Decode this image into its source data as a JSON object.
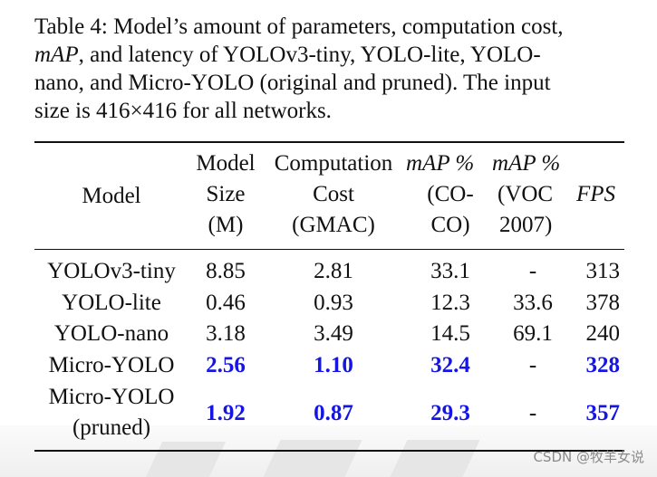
{
  "caption": {
    "line1": "Table 4: Model’s amount of parameters, computation cost,",
    "line2_map": "mAP",
    "line2_rest": ", and latency of YOLOv3-tiny, YOLO-lite, YOLO-",
    "line3": "nano, and Micro-YOLO (original and pruned).  The input",
    "line4": "size is 416×416 for all networks."
  },
  "headers": {
    "model": "Model",
    "size": [
      "Model",
      "Size",
      "(M)"
    ],
    "cost": [
      "Computation",
      "Cost",
      "(GMAC)"
    ],
    "map_coco": [
      "mAP %",
      "(CO-",
      "CO)"
    ],
    "map_voc": [
      "mAP %",
      "(VOC",
      "2007)"
    ],
    "fps": "FPS"
  },
  "rows": [
    {
      "model": "YOLOv3-tiny",
      "size": "8.85",
      "cost": "2.81",
      "coco": "33.1",
      "voc": "-",
      "fps": "313"
    },
    {
      "model": "YOLO-lite",
      "size": "0.46",
      "cost": "0.93",
      "coco": "12.3",
      "voc": "33.6",
      "fps": "378"
    },
    {
      "model": "YOLO-nano",
      "size": "3.18",
      "cost": "3.49",
      "coco": "14.5",
      "voc": "69.1",
      "fps": "240"
    },
    {
      "model": "Micro-YOLO",
      "size": "2.56",
      "cost": "1.10",
      "coco": "32.4",
      "voc": "-",
      "fps": "328"
    },
    {
      "model": [
        "Micro-YOLO",
        "(pruned)"
      ],
      "size": "1.92",
      "cost": "0.87",
      "coco": "29.3",
      "voc": "-",
      "fps": "357"
    }
  ],
  "watermark": "CSDN @牧羊女说",
  "colors": {
    "highlight": "#1515e6",
    "text": "#111111"
  }
}
